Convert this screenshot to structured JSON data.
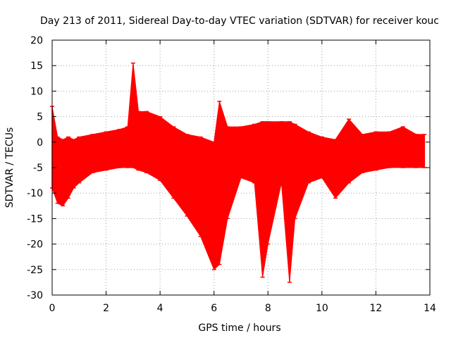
{
  "chart_data": {
    "type": "scatter",
    "title": "Day 213 of 2011, Sidereal Day-to-day VTEC variation (SDTVAR) for receiver kouc",
    "xlabel": "GPS time / hours",
    "ylabel": "SDTVAR / TECUs",
    "xlim": [
      0,
      14
    ],
    "ylim": [
      -30,
      20
    ],
    "xticks": [
      "0",
      "2",
      "4",
      "6",
      "8",
      "10",
      "12",
      "14"
    ],
    "yticks": [
      "20",
      "15",
      "10",
      "5",
      "0",
      "-5",
      "-10",
      "-15",
      "-20",
      "-25",
      "-30"
    ],
    "grid": true,
    "series": [
      {
        "name": "SDTVAR",
        "color": "#ff0000",
        "marker": "error-bar",
        "x": [
          0.0,
          0.2,
          0.4,
          0.6,
          0.8,
          1.0,
          1.5,
          2.0,
          2.5,
          2.8,
          3.0,
          3.2,
          3.5,
          4.0,
          4.5,
          5.0,
          5.5,
          6.0,
          6.2,
          6.5,
          7.0,
          7.5,
          7.8,
          8.0,
          8.5,
          8.8,
          9.0,
          9.5,
          10.0,
          10.5,
          11.0,
          11.5,
          12.0,
          12.5,
          13.0,
          13.5,
          13.8
        ],
        "upper": [
          7.0,
          1.0,
          0.5,
          1.0,
          0.5,
          1.0,
          1.5,
          2.0,
          2.5,
          3.0,
          15.5,
          6.0,
          6.0,
          5.0,
          3.0,
          1.5,
          1.0,
          0.0,
          8.0,
          3.0,
          3.0,
          3.5,
          4.0,
          4.0,
          4.0,
          4.0,
          3.5,
          2.0,
          1.0,
          0.5,
          4.5,
          1.5,
          2.0,
          2.0,
          3.0,
          1.5,
          1.5
        ],
        "lower": [
          -9.0,
          -12.0,
          -12.5,
          -11.0,
          -9.0,
          -8.0,
          -6.0,
          -5.5,
          -5.0,
          -5.0,
          -5.0,
          -5.5,
          -6.0,
          -7.5,
          -11.0,
          -14.5,
          -18.5,
          -25.0,
          -24.0,
          -15.0,
          -7.0,
          -8.0,
          -26.5,
          -20.0,
          -8.0,
          -27.5,
          -15.0,
          -8.0,
          -7.0,
          -11.0,
          -8.0,
          -6.0,
          -5.5,
          -5.0,
          -5.0,
          -5.0,
          -5.0
        ]
      }
    ]
  }
}
